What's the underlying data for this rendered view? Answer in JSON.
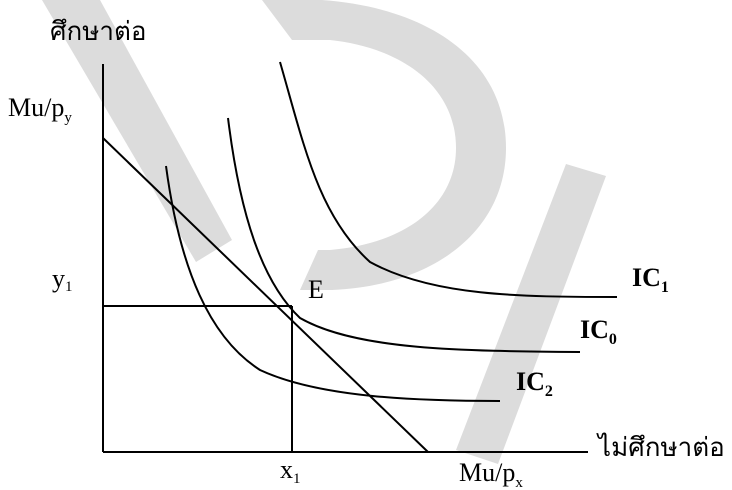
{
  "colors": {
    "background": "#ffffff",
    "ink": "#000000",
    "watermark": "#dcdcdc"
  },
  "axes": {
    "y_title": "ศึกษาต่อ",
    "x_title": "ไม่ศึกษาต่อ",
    "y_intercept_label": "Mu/p",
    "y_intercept_sub": "y",
    "x_intercept_label": "Mu/p",
    "x_intercept_sub": "x",
    "y_point_label": "y",
    "y_point_sub": "1",
    "x_point_label": "x",
    "x_point_sub": "1"
  },
  "equilibrium": {
    "label": "E"
  },
  "curves": [
    {
      "name": "IC",
      "sub": "1"
    },
    {
      "name": "IC",
      "sub": "0"
    },
    {
      "name": "IC",
      "sub": "2"
    }
  ],
  "watermark": {
    "letters": [
      "D",
      "P",
      "U"
    ],
    "icon": "dpu-watermark-icon"
  }
}
